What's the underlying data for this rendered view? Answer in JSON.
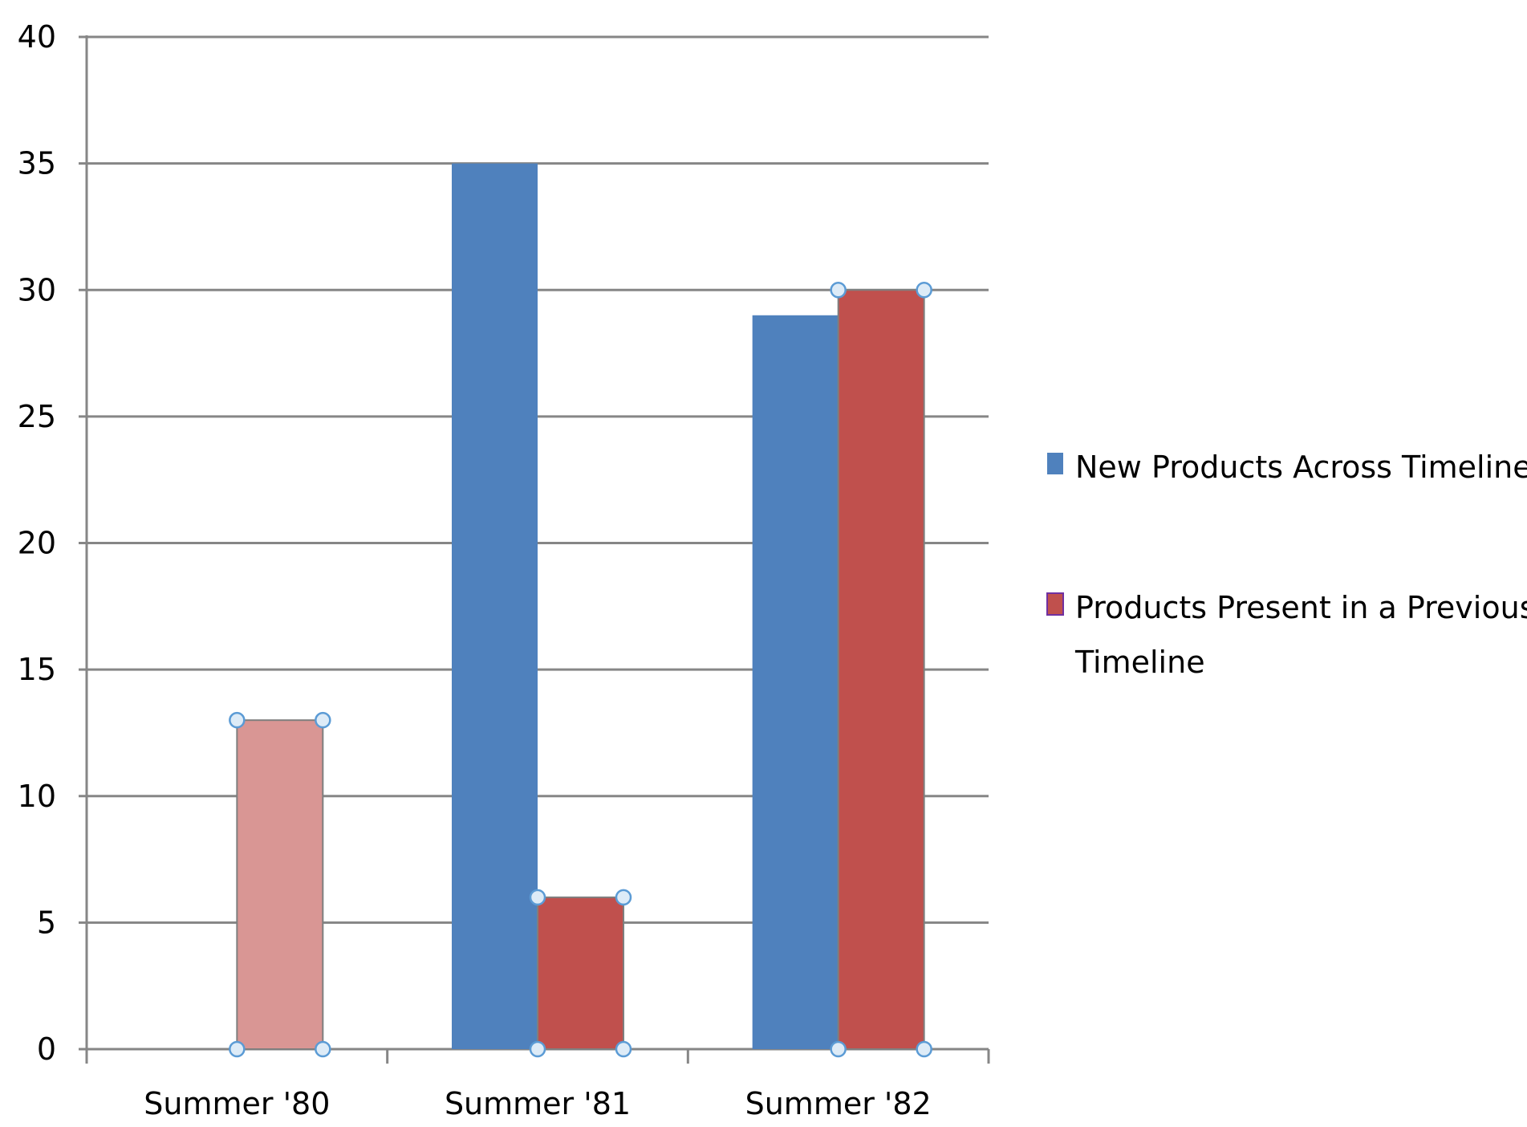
{
  "chart_data": {
    "type": "bar",
    "categories": [
      "Summer '80",
      "Summer '81",
      "Summer '82"
    ],
    "series": [
      {
        "name": "New Products Across Timeline",
        "values": [
          0,
          35,
          29
        ],
        "color": "#4F81BD"
      },
      {
        "name": "Products Present in a Previous Timeline",
        "values": [
          13,
          6,
          30
        ],
        "color": "#C0504D"
      }
    ],
    "selected_point": {
      "series": 1,
      "category": 0,
      "color": "#D99694"
    },
    "ylim": [
      0,
      40
    ],
    "yticks": [
      0,
      5,
      10,
      15,
      20,
      25,
      30,
      35,
      40
    ],
    "grid": true,
    "legend_position": "right",
    "legend": {
      "items": [
        {
          "label": "New Products Across Timeline",
          "color": "#4F81BD"
        },
        {
          "label_lines": [
            "Products Present in a Previous",
            "Timeline"
          ],
          "color": "#C0504D"
        }
      ]
    },
    "title": "",
    "xlabel": "",
    "ylabel": ""
  }
}
